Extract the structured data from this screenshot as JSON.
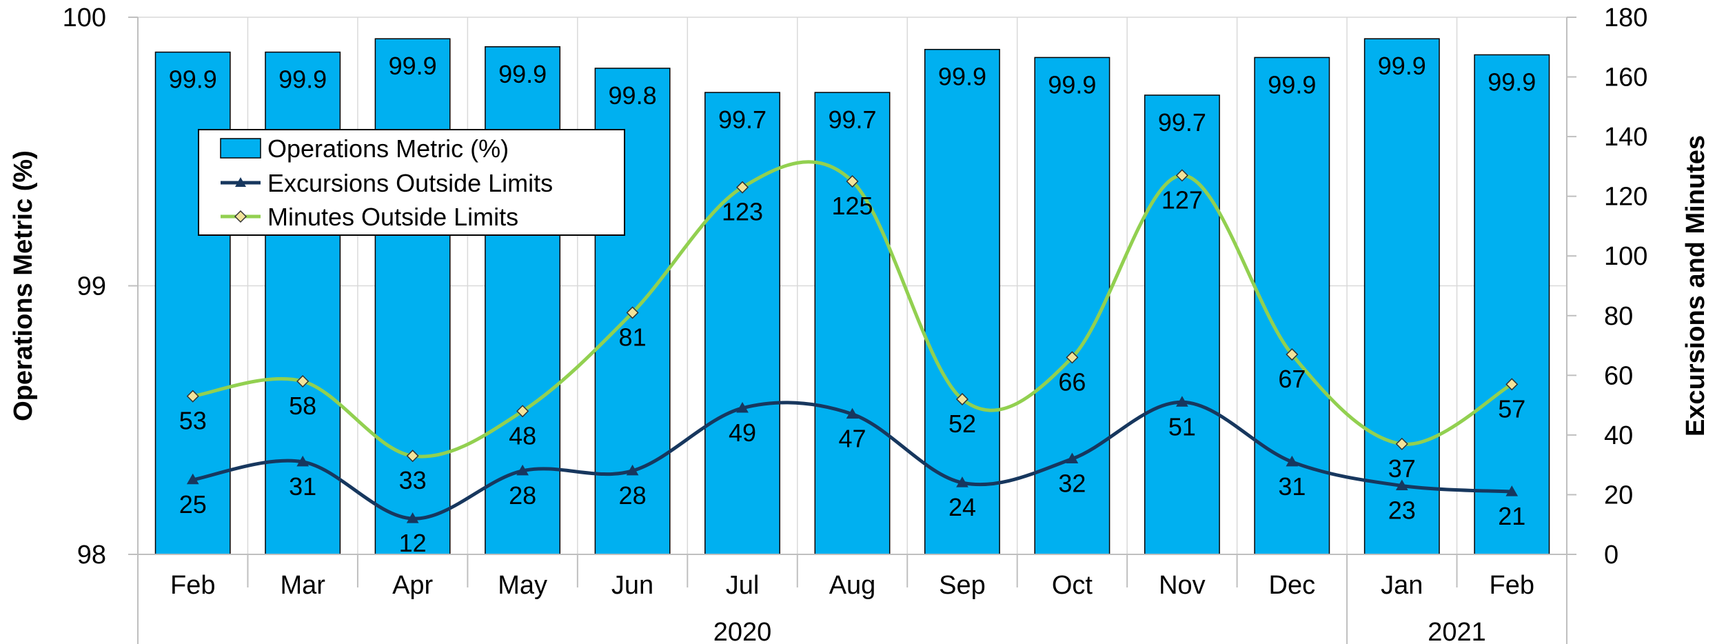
{
  "chart_data": {
    "type": "bar",
    "categories": [
      "Feb",
      "Mar",
      "Apr",
      "May",
      "Jun",
      "Jul",
      "Aug",
      "Sep",
      "Oct",
      "Nov",
      "Dec",
      "Jan",
      "Feb"
    ],
    "year_groups": [
      {
        "label": "2020",
        "start": 0,
        "end": 10
      },
      {
        "label": "2021",
        "start": 11,
        "end": 12
      }
    ],
    "series": [
      {
        "name": "Operations Metric (%)",
        "type": "bar",
        "axis": "left",
        "color": "#00B0F0",
        "values": [
          99.87,
          99.87,
          99.92,
          99.89,
          99.81,
          99.72,
          99.72,
          99.88,
          99.85,
          99.71,
          99.85,
          99.92,
          99.86
        ],
        "labels": [
          "99.9",
          "99.9",
          "99.9",
          "99.9",
          "99.8",
          "99.7",
          "99.7",
          "99.9",
          "99.9",
          "99.7",
          "99.9",
          "99.9",
          "99.9"
        ]
      },
      {
        "name": "Excursions Outside Limits",
        "type": "line",
        "axis": "right",
        "color": "#17375E",
        "marker": "triangle",
        "values": [
          25,
          31,
          12,
          28,
          28,
          49,
          47,
          24,
          32,
          51,
          31,
          23,
          21
        ]
      },
      {
        "name": "Minutes Outside Limits",
        "type": "line",
        "axis": "right",
        "color": "#92D050",
        "marker": "diamond",
        "values": [
          53,
          58,
          33,
          48,
          81,
          123,
          125,
          52,
          66,
          127,
          67,
          37,
          57
        ]
      }
    ],
    "ylabel": "Operations Metric (%)",
    "y2label": "Excursions and Minutes",
    "ylim": [
      98,
      100
    ],
    "yticks": [
      "98",
      "99",
      "100"
    ],
    "y2lim": [
      0,
      180
    ],
    "y2ticks": [
      "0",
      "20",
      "40",
      "60",
      "80",
      "100",
      "120",
      "140",
      "160",
      "180"
    ],
    "grid": true,
    "legend_position": "upper-left"
  }
}
